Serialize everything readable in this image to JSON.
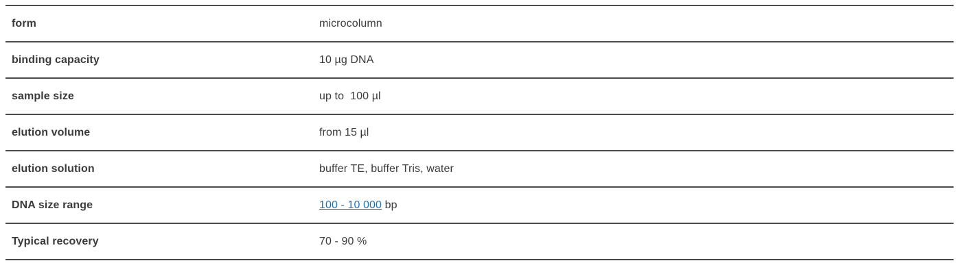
{
  "table": {
    "rows": [
      {
        "label": "form",
        "value": "microcolumn"
      },
      {
        "label": "binding capacity",
        "value": "10 µg DNA"
      },
      {
        "label": "sample size",
        "value": "up to  100 µl"
      },
      {
        "label": "elution volume",
        "value": "from 15 µl"
      },
      {
        "label": "elution solution",
        "value": "buffer TE, buffer Tris, water"
      },
      {
        "label": "DNA size range",
        "link_text": "100 - 10 000",
        "value_suffix": " bp"
      },
      {
        "label": "Typical recovery",
        "value": "70 - 90 %"
      }
    ],
    "colors": {
      "text": "#3b3b3b",
      "border": "#4b4b4b",
      "link": "#1e73be"
    }
  }
}
